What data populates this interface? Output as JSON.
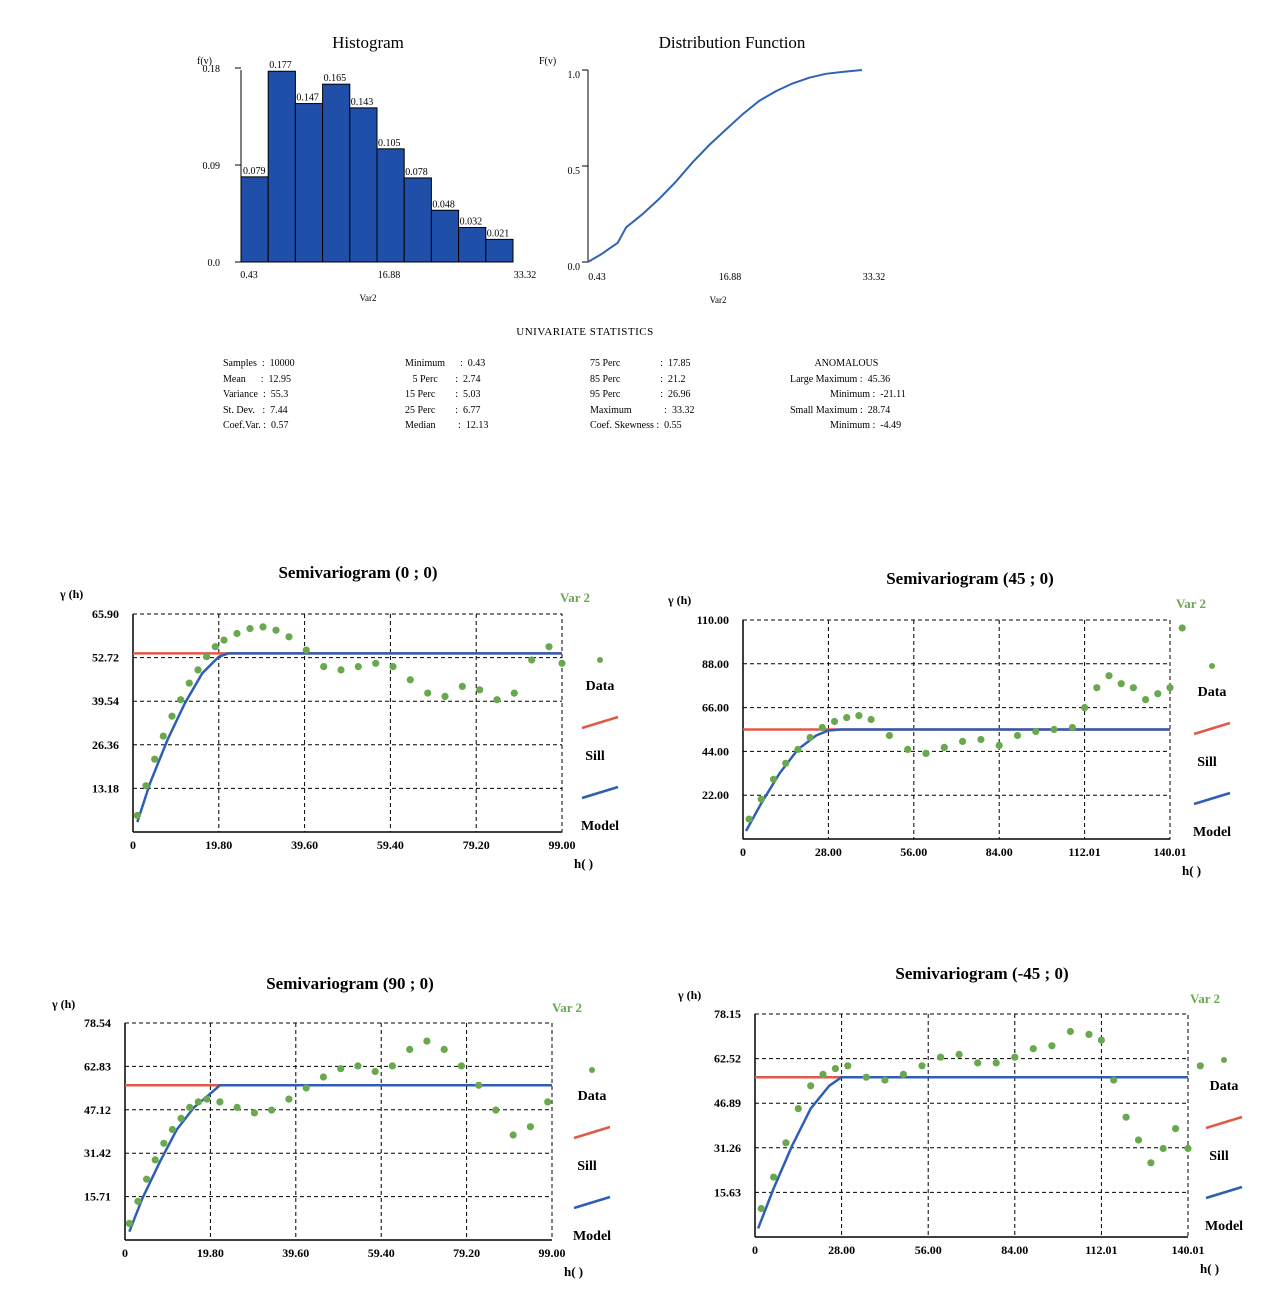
{
  "colors": {
    "bar": "#1f4fa8",
    "cdf": "#2f62b8",
    "data": "#6aa84f",
    "sill": "#e05a4a",
    "model": "#2f5fb5"
  },
  "histogram": {
    "title": "Histogram",
    "ylabel": "f(v)",
    "xlabel": "Var2",
    "yticks": [
      "0.18",
      "0.09",
      "0.0"
    ],
    "xticks": [
      "0.43",
      "16.88",
      "33.32"
    ],
    "bar_labels": [
      "0.079",
      "0.177",
      "0.147",
      "0.165",
      "0.143",
      "0.105",
      "0.078",
      "0.048",
      "0.032",
      "0.021"
    ]
  },
  "distribution": {
    "title": "Distribution Function",
    "ylabel": "F(v)",
    "xlabel": "Var2",
    "yticks": [
      "1.0",
      "0.5",
      "0.0"
    ],
    "xticks": [
      "0.43",
      "16.88",
      "33.32"
    ]
  },
  "stats": {
    "title": "UNIVARIATE STATISTICS",
    "col1": [
      "Samples  :  10000",
      "Mean      :  12.95",
      "Variance  :  55.3",
      "St. Dev.   :  7.44",
      "Coef.Var. :  0.57"
    ],
    "col2": [
      "Minimum      :  0.43",
      "   5 Perc       :  2.74",
      "15 Perc        :  5.03",
      "25 Perc        :  6.77",
      "Median         :  12.13"
    ],
    "col3": [
      "75 Perc                :  17.85",
      "85 Perc                :  21.2",
      "95 Perc                :  26.96",
      "Maximum             :  33.32",
      "Coef. Skewness :  0.55"
    ],
    "col4": [
      "          ANOMALOUS",
      "Large Maximum :  45.36",
      "                Minimum :  -21.11",
      "Small Maximum :  28.74",
      "                Minimum :  -4.49"
    ]
  },
  "semivariograms": {
    "series_label": "Var 2",
    "ylabel": "γ (h)",
    "xlabel": "h( )",
    "legend": [
      "Data",
      "Sill",
      "Model"
    ],
    "plots": [
      {
        "title": "Semivariogram (0 ; 0)",
        "yticks": [
          "65.90",
          "52.72",
          "39.54",
          "26.36",
          "13.18"
        ],
        "xticks": [
          "0",
          "19.80",
          "39.60",
          "59.40",
          "79.20",
          "99.00"
        ]
      },
      {
        "title": "Semivariogram (45 ; 0)",
        "yticks": [
          "110.00",
          "88.00",
          "66.00",
          "44.00",
          "22.00"
        ],
        "xticks": [
          "0",
          "28.00",
          "56.00",
          "84.00",
          "112.01",
          "140.01"
        ]
      },
      {
        "title": "Semivariogram (90 ; 0)",
        "yticks": [
          "78.54",
          "62.83",
          "47.12",
          "31.42",
          "15.71"
        ],
        "xticks": [
          "0",
          "19.80",
          "39.60",
          "59.40",
          "79.20",
          "99.00"
        ]
      },
      {
        "title": "Semivariogram (-45 ; 0)",
        "yticks": [
          "78.15",
          "62.52",
          "46.89",
          "31.26",
          "15.63"
        ],
        "xticks": [
          "0",
          "28.00",
          "56.00",
          "84.00",
          "112.01",
          "140.01"
        ]
      }
    ]
  },
  "chart_data": [
    {
      "type": "bar",
      "title": "Histogram",
      "xlabel": "Var2",
      "ylabel": "f(v)",
      "xlim": [
        0.43,
        33.32
      ],
      "ylim": [
        0,
        0.18
      ],
      "values": [
        0.079,
        0.177,
        0.147,
        0.165,
        0.143,
        0.105,
        0.078,
        0.048,
        0.032,
        0.021
      ]
    },
    {
      "type": "line",
      "title": "Distribution Function",
      "xlabel": "Var2",
      "ylabel": "F(v)",
      "xlim": [
        0.43,
        33.32
      ],
      "ylim": [
        0,
        1.0
      ],
      "x": [
        0.43,
        2,
        4,
        5,
        7,
        9,
        11,
        13,
        15,
        17,
        19,
        21,
        23,
        25,
        27,
        29,
        31,
        33.32
      ],
      "y": [
        0.0,
        0.04,
        0.1,
        0.18,
        0.25,
        0.33,
        0.42,
        0.52,
        0.61,
        0.69,
        0.77,
        0.84,
        0.89,
        0.93,
        0.96,
        0.98,
        0.99,
        1.0
      ]
    },
    {
      "type": "scatter",
      "title": "Semivariogram (0 ; 0)",
      "xlabel": "h( )",
      "ylabel": "γ (h)",
      "xlim": [
        0,
        99.0
      ],
      "ylim": [
        0,
        65.9
      ],
      "grid": true,
      "series": [
        {
          "name": "Data",
          "x": [
            1,
            3,
            5,
            7,
            9,
            11,
            13,
            15,
            17,
            19,
            21,
            24,
            27,
            30,
            33,
            36,
            40,
            44,
            48,
            52,
            56,
            60,
            64,
            68,
            72,
            76,
            80,
            84,
            88,
            92,
            96,
            99
          ],
          "y": [
            5,
            14,
            22,
            29,
            35,
            40,
            45,
            49,
            53,
            56,
            58,
            60,
            61.5,
            62,
            61,
            59,
            55,
            50,
            49,
            50,
            51,
            50,
            46,
            42,
            41,
            44,
            43,
            40,
            42,
            52,
            56,
            51
          ]
        },
        {
          "name": "Sill",
          "x": [
            0,
            99
          ],
          "y": [
            54,
            54
          ]
        },
        {
          "name": "Model",
          "x": [
            1,
            4,
            8,
            12,
            16,
            19.8,
            22,
            99
          ],
          "y": [
            3,
            15,
            28,
            39,
            48,
            53,
            54,
            54
          ]
        }
      ]
    },
    {
      "type": "scatter",
      "title": "Semivariogram (45 ; 0)",
      "xlabel": "h( )",
      "ylabel": "γ (h)",
      "xlim": [
        0,
        140.01
      ],
      "ylim": [
        0,
        110.0
      ],
      "grid": true,
      "series": [
        {
          "name": "Data",
          "x": [
            2,
            6,
            10,
            14,
            18,
            22,
            26,
            30,
            34,
            38,
            42,
            48,
            54,
            60,
            66,
            72,
            78,
            84,
            90,
            96,
            102,
            108,
            112,
            116,
            120,
            124,
            128,
            132,
            136,
            140,
            144
          ],
          "y": [
            10,
            20,
            30,
            38,
            45,
            51,
            56,
            59,
            61,
            62,
            60,
            52,
            45,
            43,
            46,
            49,
            50,
            47,
            52,
            54,
            55,
            56,
            66,
            76,
            82,
            78,
            76,
            70,
            73,
            76,
            106
          ]
        },
        {
          "name": "Sill",
          "x": [
            0,
            140.01
          ],
          "y": [
            55,
            55
          ]
        },
        {
          "name": "Model",
          "x": [
            1,
            6,
            12,
            18,
            24,
            28,
            32,
            140.01
          ],
          "y": [
            4,
            18,
            33,
            45,
            52,
            54.5,
            55,
            55
          ]
        }
      ]
    },
    {
      "type": "scatter",
      "title": "Semivariogram (90 ; 0)",
      "xlabel": "h( )",
      "ylabel": "γ (h)",
      "xlim": [
        0,
        99.0
      ],
      "ylim": [
        0,
        78.54
      ],
      "grid": true,
      "series": [
        {
          "name": "Data",
          "x": [
            1,
            3,
            5,
            7,
            9,
            11,
            13,
            15,
            17,
            19,
            22,
            26,
            30,
            34,
            38,
            42,
            46,
            50,
            54,
            58,
            62,
            66,
            70,
            74,
            78,
            82,
            86,
            90,
            94,
            98
          ],
          "y": [
            6,
            14,
            22,
            29,
            35,
            40,
            44,
            48,
            50,
            51,
            50,
            48,
            46,
            47,
            51,
            55,
            59,
            62,
            63,
            61,
            63,
            69,
            72,
            69,
            63,
            56,
            47,
            38,
            41,
            50
          ]
        },
        {
          "name": "Sill",
          "x": [
            0,
            99
          ],
          "y": [
            56,
            56
          ]
        },
        {
          "name": "Model",
          "x": [
            1,
            4,
            8,
            12,
            16,
            19.8,
            22,
            99
          ],
          "y": [
            3,
            15,
            28,
            40,
            48,
            53,
            56,
            56
          ]
        }
      ]
    },
    {
      "type": "scatter",
      "title": "Semivariogram (-45 ; 0)",
      "xlabel": "h( )",
      "ylabel": "γ (h)",
      "xlim": [
        0,
        140.01
      ],
      "ylim": [
        0,
        78.15
      ],
      "grid": true,
      "series": [
        {
          "name": "Data",
          "x": [
            2,
            6,
            10,
            14,
            18,
            22,
            26,
            30,
            36,
            42,
            48,
            54,
            60,
            66,
            72,
            78,
            84,
            90,
            96,
            102,
            108,
            112,
            116,
            120,
            124,
            128,
            132,
            136,
            140,
            144
          ],
          "y": [
            10,
            21,
            33,
            45,
            53,
            57,
            59,
            60,
            56,
            55,
            57,
            60,
            63,
            64,
            61,
            61,
            63,
            66,
            67,
            72,
            71,
            69,
            55,
            42,
            34,
            26,
            31,
            38,
            31,
            60
          ]
        },
        {
          "name": "Sill",
          "x": [
            0,
            140.01
          ],
          "y": [
            56,
            56
          ]
        },
        {
          "name": "Model",
          "x": [
            1,
            6,
            12,
            18,
            24,
            28,
            32,
            140.01
          ],
          "y": [
            3,
            17,
            32,
            45,
            53,
            56,
            56,
            56
          ]
        }
      ]
    }
  ]
}
